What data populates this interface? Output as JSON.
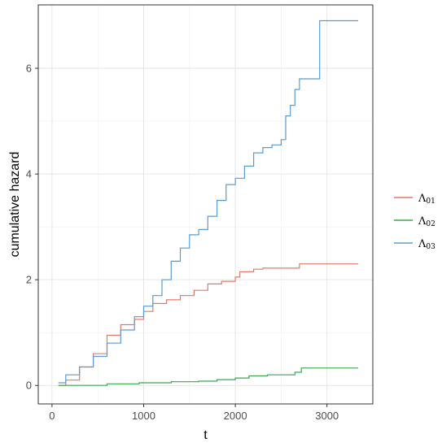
{
  "chart_data": {
    "type": "line",
    "step": true,
    "xlabel": "t",
    "ylabel": "cumulative hazard",
    "xlim": [
      -150,
      3500
    ],
    "ylim": [
      -0.35,
      7.2
    ],
    "x_ticks": [
      0,
      1000,
      2000,
      3000
    ],
    "x_tick_labels": [
      "0",
      "1000",
      "2000",
      "3000"
    ],
    "y_ticks": [
      0,
      2,
      4,
      6
    ],
    "y_tick_labels": [
      "0",
      "2",
      "4",
      "6"
    ],
    "grid": true,
    "legend_position": "right",
    "series": [
      {
        "name": "Λ01",
        "label_main": "Λ",
        "label_sub": "01",
        "color": "#e07b6c",
        "points": [
          [
            70,
            0
          ],
          [
            150,
            0.1
          ],
          [
            300,
            0.35
          ],
          [
            450,
            0.6
          ],
          [
            600,
            0.95
          ],
          [
            750,
            1.15
          ],
          [
            900,
            1.25
          ],
          [
            1000,
            1.4
          ],
          [
            1100,
            1.55
          ],
          [
            1250,
            1.62
          ],
          [
            1400,
            1.7
          ],
          [
            1550,
            1.8
          ],
          [
            1700,
            1.92
          ],
          [
            1850,
            1.97
          ],
          [
            2000,
            2.05
          ],
          [
            2050,
            2.15
          ],
          [
            2200,
            2.2
          ],
          [
            2300,
            2.22
          ],
          [
            2550,
            2.22
          ],
          [
            2700,
            2.22
          ],
          [
            2700,
            2.3
          ],
          [
            3340,
            2.3
          ]
        ]
      },
      {
        "name": "Λ02",
        "label_main": "Λ",
        "label_sub": "02",
        "color": "#3aa84f",
        "points": [
          [
            70,
            0
          ],
          [
            600,
            0
          ],
          [
            600,
            0.03
          ],
          [
            950,
            0.03
          ],
          [
            950,
            0.05
          ],
          [
            1300,
            0.05
          ],
          [
            1300,
            0.07
          ],
          [
            1600,
            0.07
          ],
          [
            1600,
            0.08
          ],
          [
            1800,
            0.08
          ],
          [
            1800,
            0.11
          ],
          [
            2000,
            0.11
          ],
          [
            2000,
            0.14
          ],
          [
            2150,
            0.14
          ],
          [
            2150,
            0.18
          ],
          [
            2350,
            0.18
          ],
          [
            2350,
            0.2
          ],
          [
            2650,
            0.2
          ],
          [
            2650,
            0.25
          ],
          [
            2720,
            0.25
          ],
          [
            2720,
            0.33
          ],
          [
            3340,
            0.33
          ]
        ]
      },
      {
        "name": "Λ03",
        "label_main": "Λ",
        "label_sub": "03",
        "color": "#5b9bd5",
        "points": [
          [
            70,
            0.05
          ],
          [
            150,
            0.2
          ],
          [
            300,
            0.35
          ],
          [
            450,
            0.55
          ],
          [
            600,
            0.8
          ],
          [
            750,
            1.05
          ],
          [
            900,
            1.3
          ],
          [
            1000,
            1.5
          ],
          [
            1100,
            1.7
          ],
          [
            1200,
            2.0
          ],
          [
            1300,
            2.35
          ],
          [
            1400,
            2.6
          ],
          [
            1500,
            2.85
          ],
          [
            1600,
            2.95
          ],
          [
            1700,
            3.2
          ],
          [
            1800,
            3.5
          ],
          [
            1900,
            3.8
          ],
          [
            2000,
            3.92
          ],
          [
            2100,
            4.15
          ],
          [
            2200,
            4.4
          ],
          [
            2300,
            4.5
          ],
          [
            2400,
            4.55
          ],
          [
            2500,
            4.65
          ],
          [
            2550,
            5.1
          ],
          [
            2600,
            5.3
          ],
          [
            2650,
            5.6
          ],
          [
            2700,
            5.8
          ],
          [
            2920,
            5.8
          ],
          [
            2920,
            6.9
          ],
          [
            3340,
            6.9
          ]
        ]
      }
    ]
  }
}
